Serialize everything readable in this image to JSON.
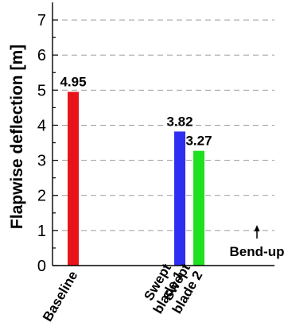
{
  "chart_data": {
    "type": "bar",
    "ylabel": "Flapwise deflection [m]",
    "ylim": [
      0,
      7.5
    ],
    "yticks": [
      0,
      1,
      2,
      3,
      4,
      5,
      6,
      7
    ],
    "grid": true,
    "categories": [
      {
        "lines": [
          "Baseline"
        ]
      },
      {
        "lines": [
          "Swept",
          "blade 1"
        ]
      },
      {
        "lines": [
          "Swept",
          "blade 2"
        ]
      }
    ],
    "values": [
      4.95,
      3.82,
      3.27
    ],
    "data_labels": [
      "4.95",
      "3.82",
      "3.27"
    ],
    "colors": [
      "#e8141c",
      "#2e2ef0",
      "#1ee01e"
    ],
    "annotation": {
      "text": "Bend-up",
      "arrow": "up"
    }
  }
}
